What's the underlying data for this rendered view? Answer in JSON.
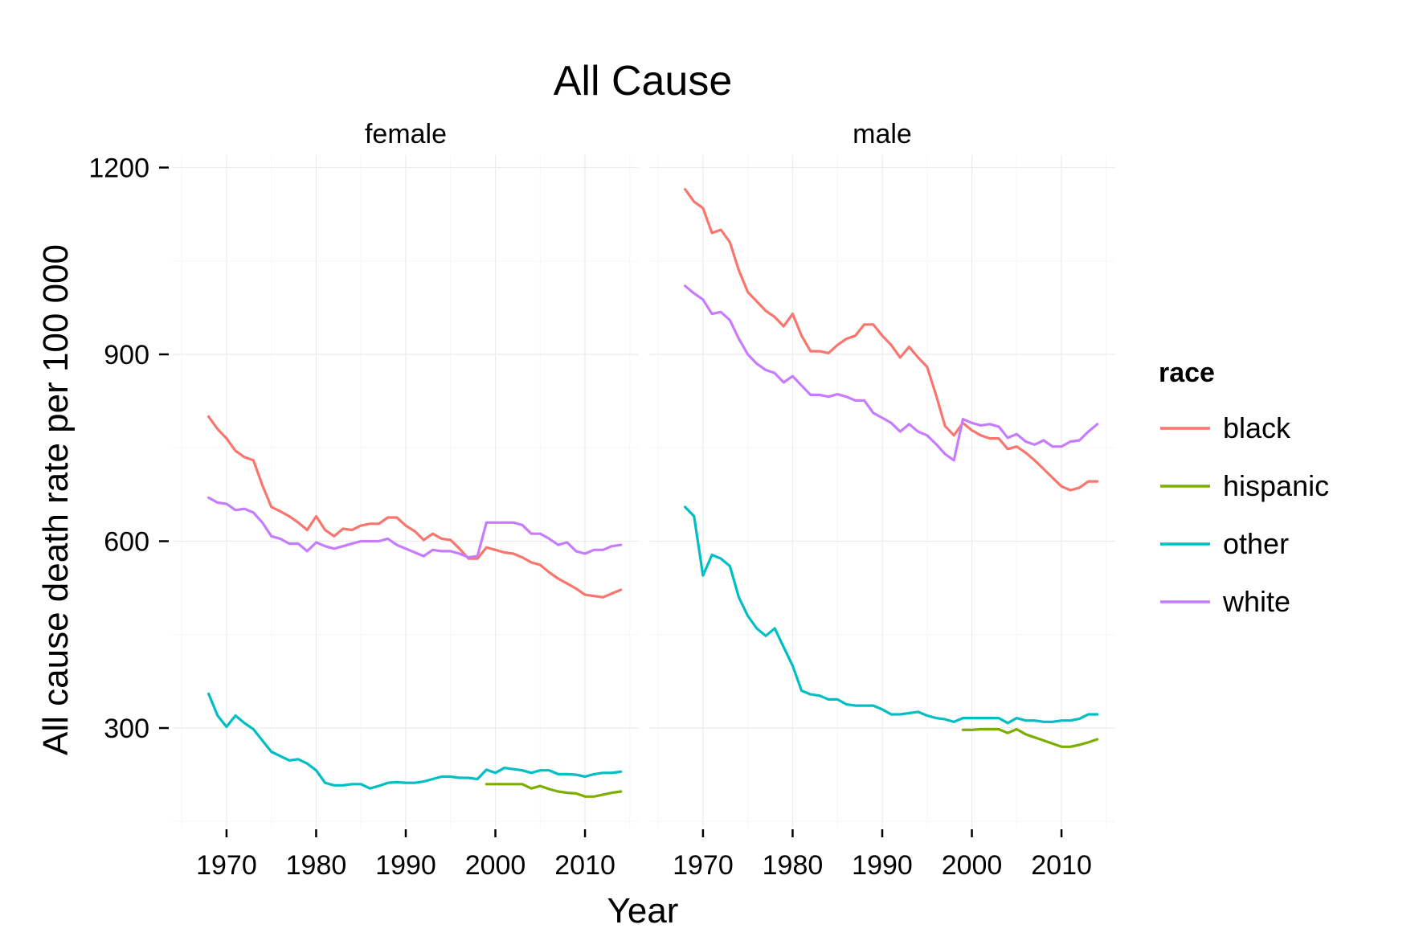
{
  "chart_data": {
    "type": "line",
    "title": "All Cause",
    "xlabel": "Year",
    "ylabel": "All cause death rate per 100 000",
    "xlim": [
      1964,
      2016
    ],
    "ylim": [
      140,
      1220
    ],
    "x_ticks": [
      1970,
      1980,
      1990,
      2000,
      2010
    ],
    "y_ticks": [
      300,
      600,
      900,
      1200
    ],
    "grid": true,
    "legend": {
      "title": "race",
      "position": "right",
      "entries": [
        {
          "name": "black",
          "color": "#F8766D"
        },
        {
          "name": "hispanic",
          "color": "#7CAE00"
        },
        {
          "name": "other",
          "color": "#00BFC4"
        },
        {
          "name": "white",
          "color": "#C77CFF"
        }
      ]
    },
    "panels": [
      {
        "name": "female",
        "series": [
          {
            "name": "black",
            "color": "#F8766D",
            "x": [
              1968,
              1969,
              1970,
              1971,
              1972,
              1973,
              1974,
              1975,
              1976,
              1977,
              1978,
              1979,
              1980,
              1981,
              1982,
              1983,
              1984,
              1985,
              1986,
              1987,
              1988,
              1989,
              1990,
              1991,
              1992,
              1993,
              1994,
              1995,
              1996,
              1997,
              1998,
              1999,
              2000,
              2001,
              2002,
              2003,
              2004,
              2005,
              2006,
              2007,
              2008,
              2009,
              2010,
              2011,
              2012,
              2013,
              2014
            ],
            "y": [
              800,
              780,
              765,
              745,
              735,
              730,
              690,
              655,
              648,
              640,
              630,
              618,
              640,
              618,
              608,
              620,
              618,
              625,
              628,
              628,
              638,
              638,
              625,
              616,
              602,
              612,
              604,
              602,
              588,
              572,
              572,
              590,
              586,
              582,
              580,
              574,
              566,
              562,
              550,
              540,
              532,
              524,
              514,
              512,
              510,
              516,
              522
            ]
          },
          {
            "name": "hispanic",
            "color": "#7CAE00",
            "x": [
              1999,
              2000,
              2001,
              2002,
              2003,
              2004,
              2005,
              2006,
              2007,
              2008,
              2009,
              2010,
              2011,
              2012,
              2013,
              2014
            ],
            "y": [
              210,
              210,
              210,
              210,
              210,
              203,
              207,
              202,
              198,
              196,
              195,
              190,
              190,
              193,
              196,
              198
            ]
          },
          {
            "name": "other",
            "color": "#00BFC4",
            "x": [
              1968,
              1969,
              1970,
              1971,
              1972,
              1973,
              1974,
              1975,
              1976,
              1977,
              1978,
              1979,
              1980,
              1981,
              1982,
              1983,
              1984,
              1985,
              1986,
              1987,
              1988,
              1989,
              1990,
              1991,
              1992,
              1993,
              1994,
              1995,
              1996,
              1997,
              1998,
              1999,
              2000,
              2001,
              2002,
              2003,
              2004,
              2005,
              2006,
              2007,
              2008,
              2009,
              2010,
              2011,
              2012,
              2013,
              2014
            ],
            "y": [
              355,
              320,
              302,
              320,
              308,
              298,
              280,
              262,
              255,
              248,
              250,
              243,
              232,
              212,
              208,
              208,
              210,
              210,
              203,
              207,
              212,
              213,
              212,
              212,
              214,
              218,
              222,
              222,
              220,
              220,
              218,
              233,
              228,
              236,
              234,
              232,
              228,
              232,
              232,
              226,
              226,
              225,
              222,
              226,
              228,
              228,
              230
            ]
          },
          {
            "name": "white",
            "color": "#C77CFF",
            "x": [
              1968,
              1969,
              1970,
              1971,
              1972,
              1973,
              1974,
              1975,
              1976,
              1977,
              1978,
              1979,
              1980,
              1981,
              1982,
              1983,
              1984,
              1985,
              1986,
              1987,
              1988,
              1989,
              1990,
              1991,
              1992,
              1993,
              1994,
              1995,
              1996,
              1997,
              1998,
              1999,
              2000,
              2001,
              2002,
              2003,
              2004,
              2005,
              2006,
              2007,
              2008,
              2009,
              2010,
              2011,
              2012,
              2013,
              2014
            ],
            "y": [
              670,
              662,
              660,
              650,
              652,
              646,
              630,
              608,
              604,
              596,
              596,
              584,
              598,
              592,
              588,
              592,
              596,
              600,
              600,
              600,
              604,
              594,
              588,
              582,
              576,
              586,
              584,
              584,
              580,
              574,
              576,
              630,
              630,
              630,
              630,
              626,
              612,
              612,
              604,
              594,
              598,
              584,
              580,
              586,
              586,
              592,
              594
            ]
          }
        ]
      },
      {
        "name": "male",
        "series": [
          {
            "name": "black",
            "color": "#F8766D",
            "x": [
              1968,
              1969,
              1970,
              1971,
              1972,
              1973,
              1974,
              1975,
              1976,
              1977,
              1978,
              1979,
              1980,
              1981,
              1982,
              1983,
              1984,
              1985,
              1986,
              1987,
              1988,
              1989,
              1990,
              1991,
              1992,
              1993,
              1994,
              1995,
              1996,
              1997,
              1998,
              1999,
              2000,
              2001,
              2002,
              2003,
              2004,
              2005,
              2006,
              2007,
              2008,
              2009,
              2010,
              2011,
              2012,
              2013,
              2014
            ],
            "y": [
              1165,
              1145,
              1135,
              1095,
              1100,
              1080,
              1035,
              1000,
              985,
              970,
              960,
              945,
              965,
              930,
              905,
              905,
              902,
              915,
              925,
              930,
              948,
              948,
              930,
              915,
              895,
              912,
              895,
              880,
              835,
              785,
              770,
              790,
              778,
              770,
              765,
              765,
              748,
              752,
              742,
              730,
              716,
              702,
              688,
              682,
              686,
              696,
              696
            ]
          },
          {
            "name": "hispanic",
            "color": "#7CAE00",
            "x": [
              1999,
              2000,
              2001,
              2002,
              2003,
              2004,
              2005,
              2006,
              2007,
              2008,
              2009,
              2010,
              2011,
              2012,
              2013,
              2014
            ],
            "y": [
              297,
              297,
              298,
              298,
              298,
              292,
              298,
              290,
              285,
              280,
              275,
              270,
              270,
              273,
              277,
              282
            ]
          },
          {
            "name": "other",
            "color": "#00BFC4",
            "x": [
              1968,
              1969,
              1970,
              1971,
              1972,
              1973,
              1974,
              1975,
              1976,
              1977,
              1978,
              1979,
              1980,
              1981,
              1982,
              1983,
              1984,
              1985,
              1986,
              1987,
              1988,
              1989,
              1990,
              1991,
              1992,
              1993,
              1994,
              1995,
              1996,
              1997,
              1998,
              1999,
              2000,
              2001,
              2002,
              2003,
              2004,
              2005,
              2006,
              2007,
              2008,
              2009,
              2010,
              2011,
              2012,
              2013,
              2014
            ],
            "y": [
              655,
              640,
              545,
              578,
              572,
              560,
              510,
              480,
              460,
              448,
              460,
              430,
              400,
              360,
              354,
              352,
              346,
              346,
              338,
              336,
              336,
              336,
              330,
              322,
              322,
              324,
              326,
              320,
              316,
              314,
              310,
              316,
              316,
              316,
              316,
              316,
              308,
              316,
              312,
              312,
              310,
              310,
              312,
              312,
              315,
              322,
              322
            ]
          },
          {
            "name": "white",
            "color": "#C77CFF",
            "x": [
              1968,
              1969,
              1970,
              1971,
              1972,
              1973,
              1974,
              1975,
              1976,
              1977,
              1978,
              1979,
              1980,
              1981,
              1982,
              1983,
              1984,
              1985,
              1986,
              1987,
              1988,
              1989,
              1990,
              1991,
              1992,
              1993,
              1994,
              1995,
              1996,
              1997,
              1998,
              1999,
              2000,
              2001,
              2002,
              2003,
              2004,
              2005,
              2006,
              2007,
              2008,
              2009,
              2010,
              2011,
              2012,
              2013,
              2014
            ],
            "y": [
              1010,
              998,
              988,
              965,
              968,
              955,
              925,
              900,
              885,
              875,
              870,
              855,
              865,
              850,
              835,
              835,
              832,
              836,
              832,
              826,
              826,
              806,
              798,
              790,
              776,
              788,
              776,
              770,
              756,
              740,
              730,
              796,
              790,
              786,
              788,
              784,
              766,
              772,
              760,
              755,
              762,
              752,
              752,
              760,
              762,
              776,
              788
            ]
          }
        ]
      }
    ]
  }
}
